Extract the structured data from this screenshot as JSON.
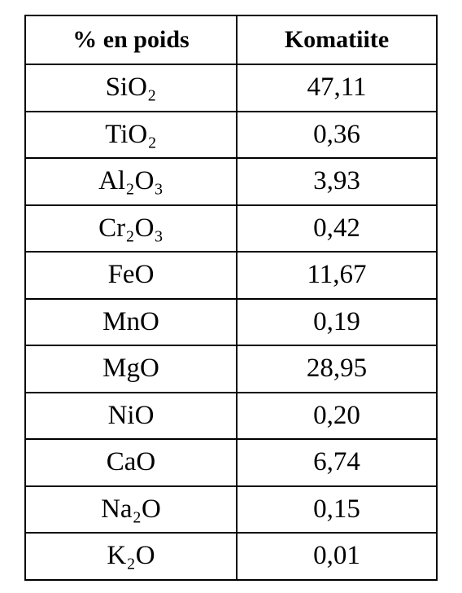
{
  "table": {
    "header": [
      "% en poids",
      "Komatiite"
    ],
    "rows": [
      [
        "SiO₂",
        "47,11"
      ],
      [
        "TiO₂",
        "0,36"
      ],
      [
        "Al₂O₃",
        "3,93"
      ],
      [
        "Cr₂O₃",
        "0,42"
      ],
      [
        "FeO",
        "11,67"
      ],
      [
        "MnO",
        "0,19"
      ],
      [
        "MgO",
        "28,95"
      ],
      [
        "NiO",
        "0,20"
      ],
      [
        "CaO",
        "6,74"
      ],
      [
        "Na₂O",
        "0,15"
      ],
      [
        "K₂O",
        "0,01"
      ]
    ]
  }
}
